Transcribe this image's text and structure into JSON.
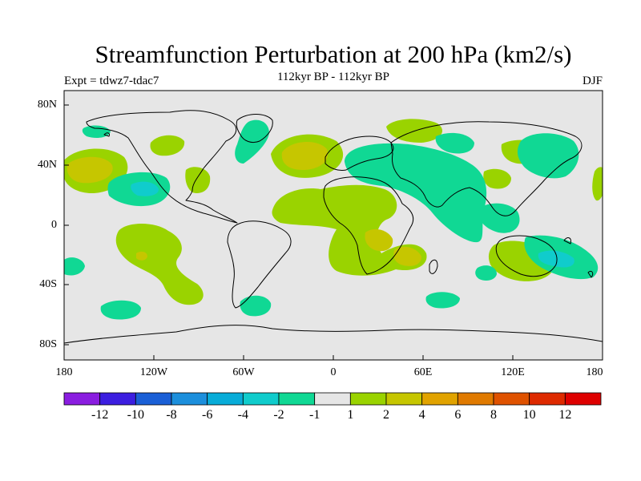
{
  "map": {
    "title": "Streamfunction Perturbation at 200 hPa (km2/s)",
    "subtitle": "112kyr BP - 112kyr BP",
    "left_label": "Expt = tdwz7-tdac7",
    "right_label": "DJF",
    "lat_ticks": [
      "80N",
      "40N",
      "0",
      "40S",
      "80S"
    ],
    "lon_ticks": [
      "180",
      "120W",
      "60W",
      "0",
      "60E",
      "120E",
      "180"
    ]
  },
  "colorbar": {
    "labels": [
      "-12",
      "-10",
      "-8",
      "-6",
      "-4",
      "-2",
      "-1",
      "1",
      "2",
      "4",
      "6",
      "8",
      "10",
      "12"
    ],
    "colors": [
      "#8a1de0",
      "#3c1ee0",
      "#1a5fd6",
      "#1c8fdc",
      "#08acd8",
      "#10cccc",
      "#10d894",
      "#e6e6e6",
      "#9ad300",
      "#c6c600",
      "#e1a300",
      "#e07a00",
      "#df5200",
      "#de2a00",
      "#de0000"
    ]
  },
  "colors": {
    "neutral": "#e6e6e6",
    "pos1": "#9ad300",
    "pos2": "#c6c600",
    "pos3": "#e1a300",
    "neg1": "#10d894",
    "neg2": "#10cccc",
    "coast": "#000000"
  }
}
